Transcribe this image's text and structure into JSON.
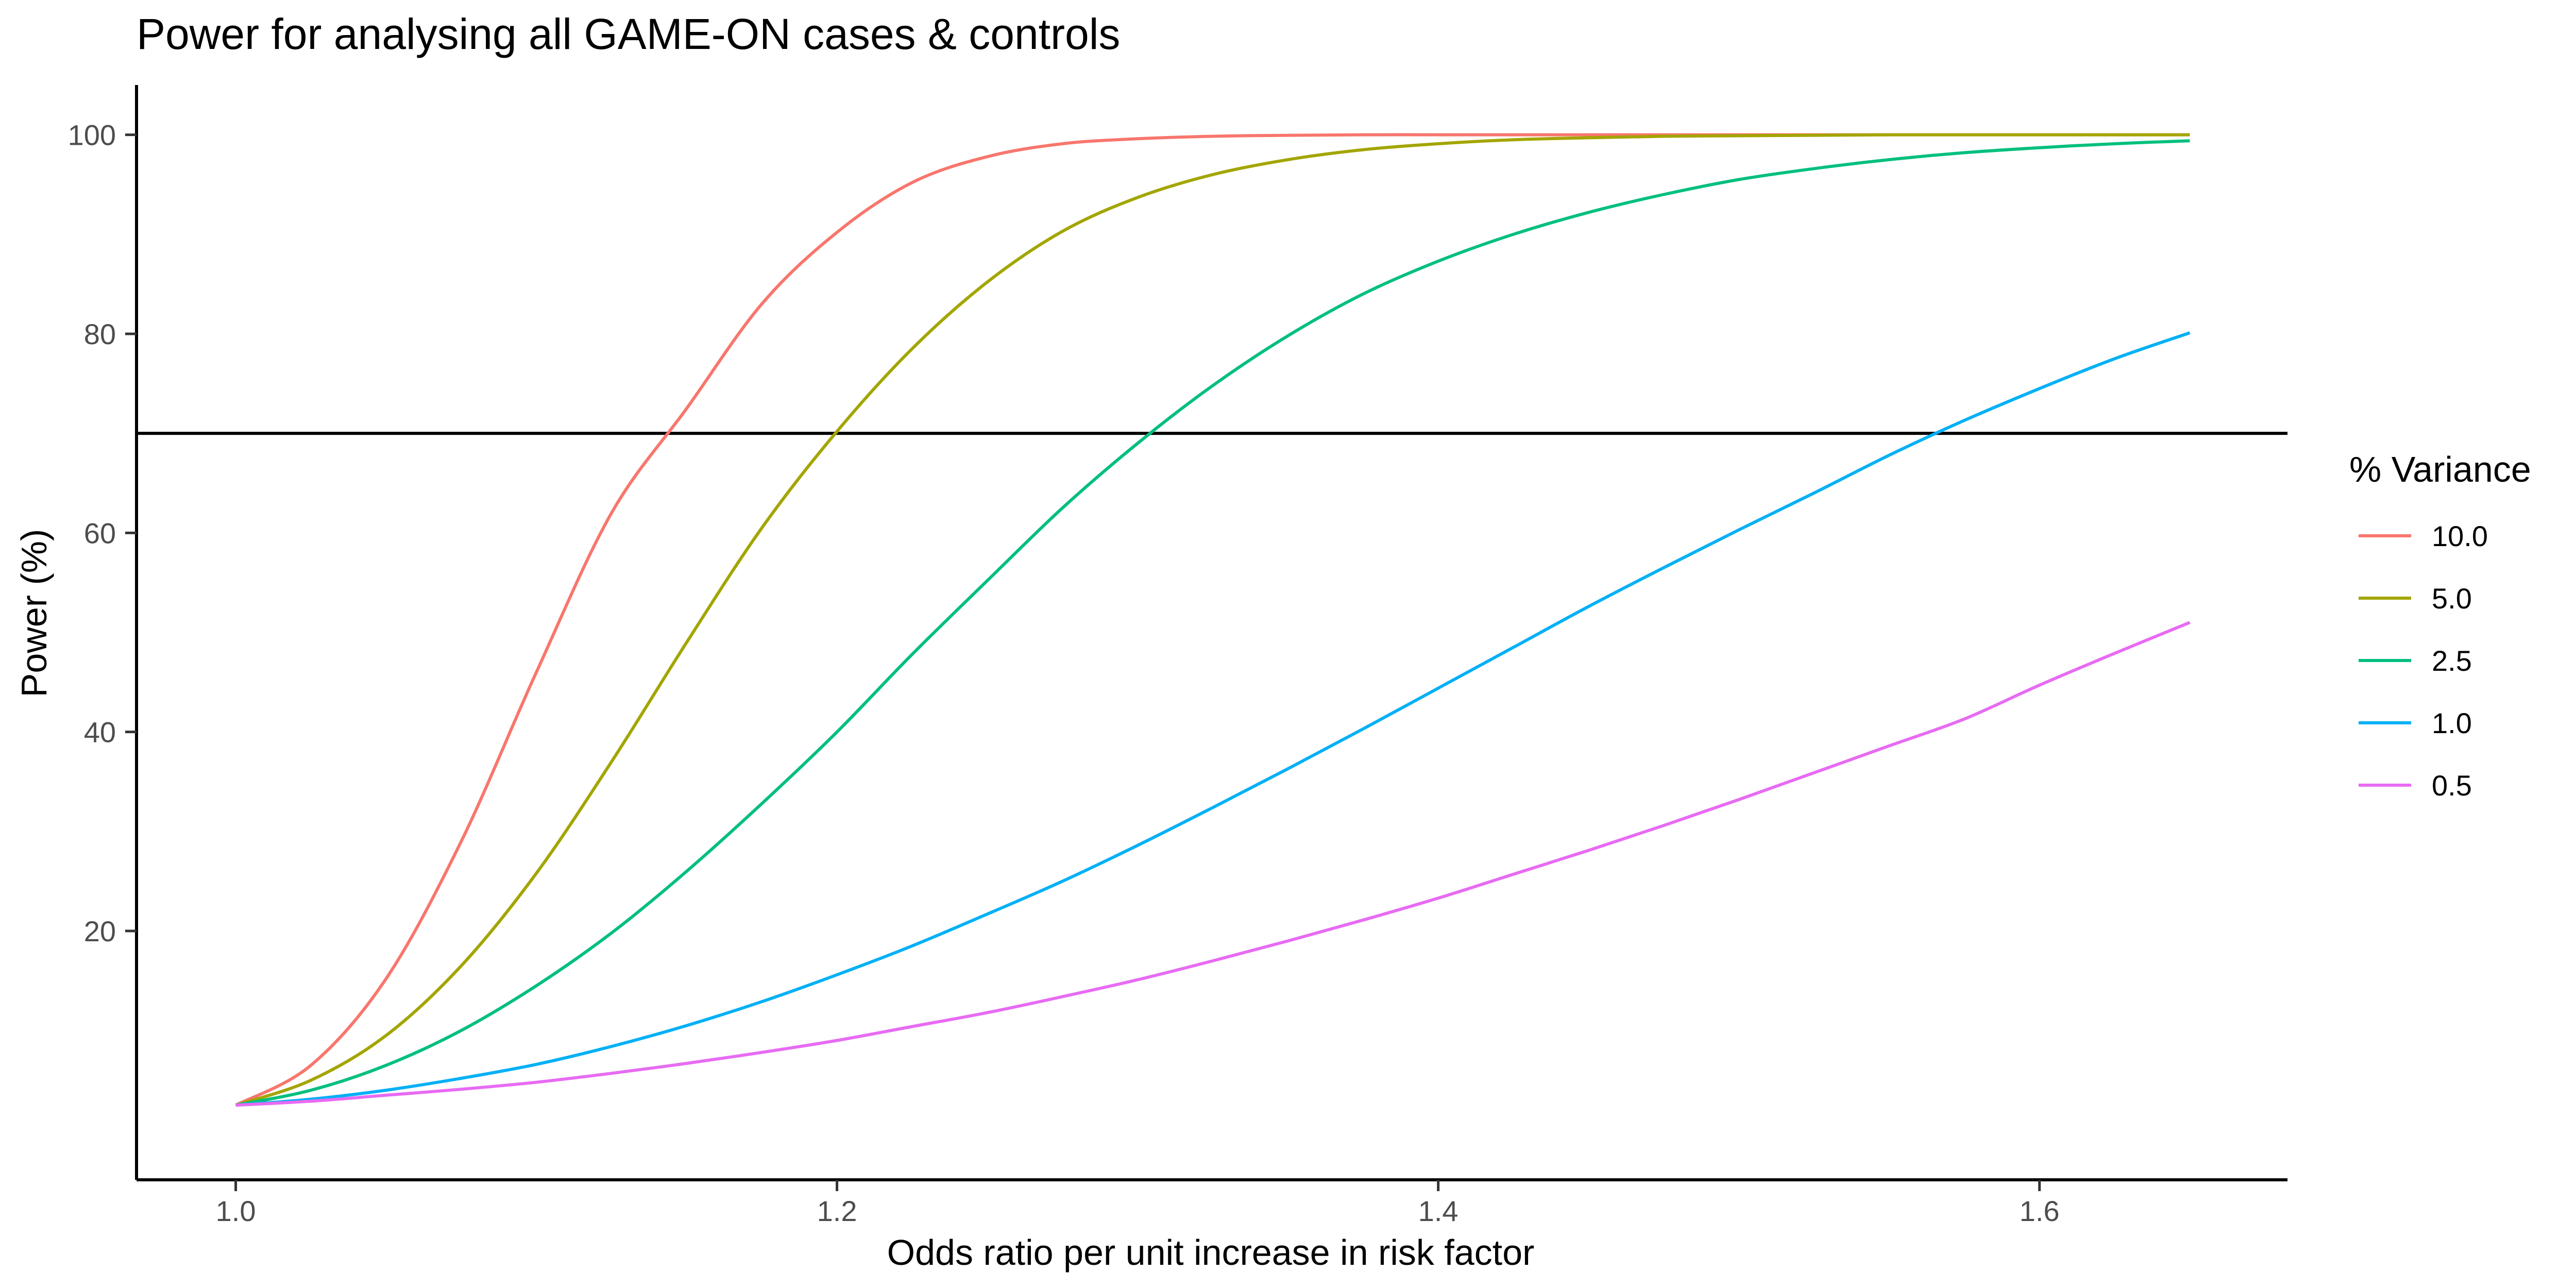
{
  "chart_data": {
    "type": "line",
    "title": "Power for analysing all GAME-ON cases & controls",
    "xlabel": "Odds ratio per unit increase in risk factor",
    "ylabel": "Power (%)",
    "xlim": [
      0.967,
      1.6825
    ],
    "ylim": [
      -5.0,
      105.0
    ],
    "x_ticks": [
      1.0,
      1.2,
      1.4,
      1.6
    ],
    "x_tick_labels": [
      "1.0",
      "1.2",
      "1.4",
      "1.6"
    ],
    "y_ticks": [
      20,
      40,
      60,
      80,
      100
    ],
    "y_tick_labels": [
      "20",
      "40",
      "60",
      "80",
      "100"
    ],
    "grid": false,
    "reference_line": {
      "y": 70,
      "color": "#000000"
    },
    "legend": {
      "title": "% Variance",
      "position": "right"
    },
    "x": [
      1.0,
      1.025,
      1.05,
      1.075,
      1.1,
      1.125,
      1.15,
      1.175,
      1.2,
      1.225,
      1.25,
      1.275,
      1.3,
      1.325,
      1.35,
      1.375,
      1.4,
      1.425,
      1.45,
      1.475,
      1.5,
      1.525,
      1.55,
      1.575,
      1.6,
      1.625,
      1.65
    ],
    "series": [
      {
        "name": "10.0",
        "color": "#F8766D",
        "values": [
          2.5,
          6.5,
          15.2,
          29.0,
          46.0,
          62.0,
          72.5,
          83.0,
          90.2,
          95.2,
          97.8,
          99.1,
          99.6,
          99.85,
          99.95,
          100.0,
          100.0,
          100.0,
          100.0,
          100.0,
          100.0,
          100.0,
          100.0,
          100.0,
          100.0,
          100.0,
          100.0
        ]
      },
      {
        "name": "5.0",
        "color": "#A3A500",
        "values": [
          2.5,
          5.0,
          9.5,
          16.5,
          25.8,
          37.0,
          49.0,
          60.5,
          70.2,
          78.5,
          85.2,
          90.3,
          93.7,
          96.0,
          97.5,
          98.5,
          99.1,
          99.5,
          99.7,
          99.85,
          99.9,
          99.95,
          100.0,
          100.0,
          100.0,
          100.0,
          100.0
        ]
      },
      {
        "name": "2.5",
        "color": "#00BF7D",
        "values": [
          2.5,
          4.0,
          6.5,
          10.0,
          14.5,
          19.8,
          26.0,
          32.8,
          40.0,
          47.8,
          55.2,
          62.5,
          69.0,
          74.8,
          79.8,
          84.0,
          87.3,
          90.0,
          92.2,
          94.0,
          95.5,
          96.6,
          97.5,
          98.2,
          98.7,
          99.1,
          99.4
        ]
      },
      {
        "name": "1.0",
        "color": "#00B0F6",
        "values": [
          2.5,
          3.1,
          4.0,
          5.2,
          6.6,
          8.4,
          10.5,
          12.9,
          15.6,
          18.5,
          21.7,
          25.0,
          28.6,
          32.4,
          36.3,
          40.3,
          44.4,
          48.5,
          52.6,
          56.5,
          60.3,
          64.0,
          67.8,
          71.3,
          74.5,
          77.5,
          80.1
        ]
      },
      {
        "name": "0.5",
        "color": "#E76BF3",
        "values": [
          2.5,
          2.9,
          3.5,
          4.1,
          4.8,
          5.7,
          6.7,
          7.8,
          9.0,
          10.4,
          11.8,
          13.4,
          15.1,
          17.0,
          19.0,
          21.1,
          23.3,
          25.7,
          28.1,
          30.6,
          33.2,
          35.9,
          38.6,
          41.3,
          44.7,
          47.9,
          51.0
        ]
      }
    ]
  }
}
